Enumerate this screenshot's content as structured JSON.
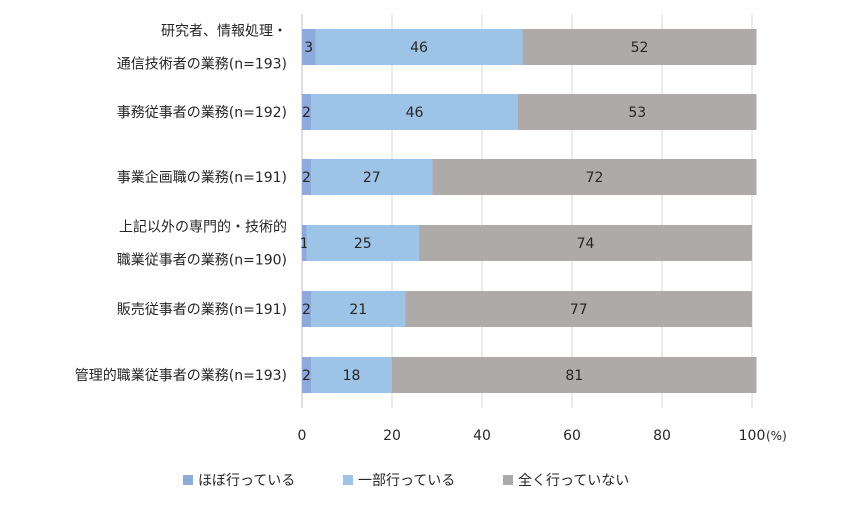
{
  "chart_data": {
    "type": "bar",
    "orientation": "horizontal",
    "stacked": true,
    "categories": [
      [
        "研究者、情報処理・",
        "通信技術者の業務(n=193)"
      ],
      [
        "事務従事者の業務(n=192)"
      ],
      [
        "事業企画職の業務(n=191)"
      ],
      [
        "上記以外の専門的・技術的",
        "職業従事者の業務(n=190)"
      ],
      [
        "販売従事者の業務(n=191)"
      ],
      [
        "管理的職業従事者の業務(n=193)"
      ]
    ],
    "series": [
      {
        "name": "ほぼ行っている",
        "color": "#8EA9DB",
        "values": [
          3,
          2,
          2,
          1,
          2,
          2
        ]
      },
      {
        "name": "一部行っている",
        "color": "#9DC3E6",
        "values": [
          46,
          46,
          27,
          25,
          21,
          18
        ]
      },
      {
        "name": "全く行っていない",
        "color": "#AEAAAA",
        "values": [
          52,
          53,
          72,
          74,
          77,
          81
        ]
      }
    ],
    "xlim": [
      0,
      100
    ],
    "xticks": [
      0,
      20,
      40,
      60,
      80,
      100
    ],
    "xunit": "(%)",
    "grid": true,
    "legend_position": "bottom",
    "data_labels": true
  }
}
